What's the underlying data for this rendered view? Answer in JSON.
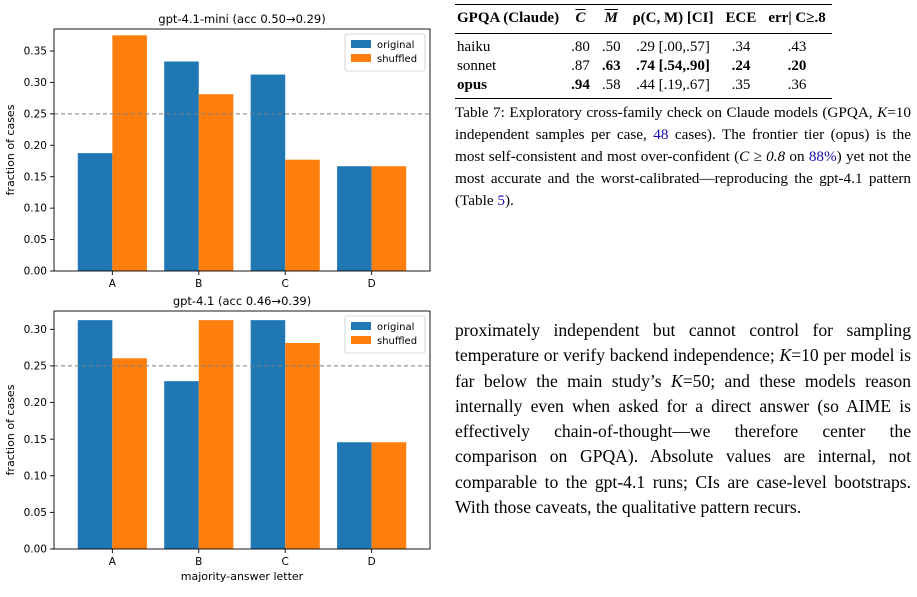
{
  "chart_data": [
    {
      "type": "bar",
      "title": "gpt-4.1-mini  (acc 0.50→0.29)",
      "categories": [
        "A",
        "B",
        "C",
        "D"
      ],
      "series": [
        {
          "name": "original",
          "values": [
            0.1875,
            0.3333,
            0.3125,
            0.1667
          ],
          "color": "#1f77b4"
        },
        {
          "name": "shuffled",
          "values": [
            0.375,
            0.2813,
            0.1771,
            0.1667
          ],
          "color": "#ff7f0e"
        }
      ],
      "ylabel": "fraction of cases",
      "xlabel": "",
      "ylim": [
        0,
        0.385
      ],
      "yticks": [
        "0.00",
        "0.05",
        "0.10",
        "0.15",
        "0.20",
        "0.25",
        "0.30",
        "0.35"
      ],
      "reference_line": 0.25,
      "legend": "top-right",
      "grid": false
    },
    {
      "type": "bar",
      "title": "gpt-4.1  (acc 0.46→0.39)",
      "categories": [
        "A",
        "B",
        "C",
        "D"
      ],
      "series": [
        {
          "name": "original",
          "values": [
            0.3125,
            0.2292,
            0.3125,
            0.1458
          ],
          "color": "#1f77b4"
        },
        {
          "name": "shuffled",
          "values": [
            0.2604,
            0.3125,
            0.2813,
            0.1458
          ],
          "color": "#ff7f0e"
        }
      ],
      "ylabel": "fraction of cases",
      "xlabel": "majority-answer letter",
      "ylim": [
        0,
        0.325
      ],
      "yticks": [
        "0.00",
        "0.05",
        "0.10",
        "0.15",
        "0.20",
        "0.25",
        "0.30"
      ],
      "reference_line": 0.25,
      "legend": "top-right",
      "grid": false
    }
  ],
  "table": {
    "headers": [
      "GPQA (Claude)",
      "C",
      "M",
      "ρ(C, M) [CI]",
      "ECE",
      "err| C≥.8"
    ],
    "rows": [
      {
        "model": "haiku",
        "c": ".80",
        "m": ".50",
        "rho": ".29 [.00,.57]",
        "ece": ".34",
        "err": ".43"
      },
      {
        "model": "sonnet",
        "c": ".87",
        "m": ".63",
        "rho": ".74 [.54,.90]",
        "ece": ".24",
        "err": ".20"
      },
      {
        "model": "opus",
        "c": ".94",
        "m": ".58",
        "rho": ".44 [.19,.67]",
        "ece": ".35",
        "err": ".36"
      }
    ]
  },
  "caption": {
    "label": "Table 7:",
    "p1": " Exploratory cross-family check on Claude models (GPQA, ",
    "k": "K",
    "p2": "=10 independent samples per case, ",
    "n": "48",
    "p3": " cases). The frontier tier (opus) is the most self-consistent and most over-confident (",
    "cond": "C ≥ 0.8",
    "p4": " on ",
    "pct": "88%",
    "p5": ") yet not the most accurate and the worst-calibrated—reproducing the gpt-4.1 pattern (Table ",
    "ref": "5",
    "p6": ")."
  },
  "body": {
    "t1": "proximately independent but cannot control for sampling temperature or verify backend independence; ",
    "k1": "K",
    "t2": "=10 per model is far below the main study’s ",
    "k2": "K",
    "t3": "=50; and these models reason internally even when asked for a direct answer (so AIME is effectively chain-of-thought—we therefore center the comparison on GPQA). Absolute values are internal, not comparable to the gpt-4.1 runs; CIs are case-level bootstraps. With those caveats, the qualitative pattern recurs."
  }
}
